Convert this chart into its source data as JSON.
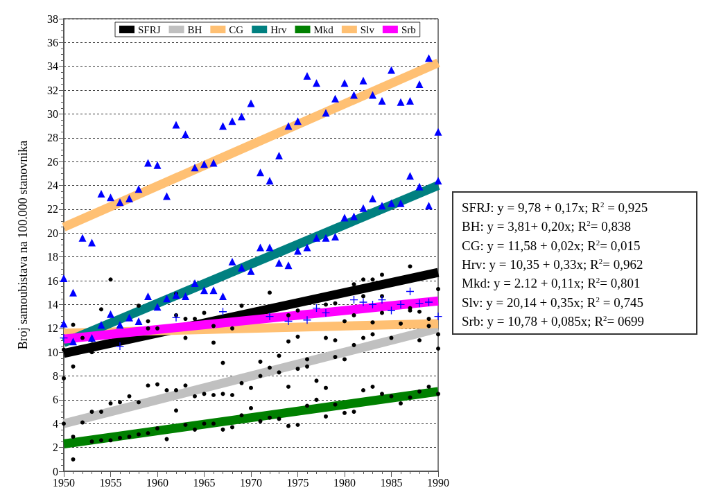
{
  "chart_data": {
    "type": "scatter",
    "ylabel": "Broj samoubistava na 100.000 stanovnika",
    "xlim": [
      1950,
      1990
    ],
    "xticks": [
      1950,
      1955,
      1960,
      1965,
      1970,
      1975,
      1980,
      1985,
      1990
    ],
    "ylim": [
      0,
      38
    ],
    "yticks": [
      0,
      2,
      4,
      6,
      8,
      10,
      12,
      14,
      16,
      18,
      20,
      22,
      24,
      26,
      28,
      30,
      32,
      34,
      36,
      38
    ],
    "grid": "y",
    "legend": "top",
    "series": [
      {
        "name": "SFRJ",
        "type": "line",
        "color": "#000000",
        "marker": "none",
        "x": [
          1950,
          1990
        ],
        "values": [
          9.9,
          16.7
        ]
      },
      {
        "name": "BH",
        "type": "line",
        "color": "#c0c0c0",
        "marker": "none",
        "x": [
          1950,
          1990
        ],
        "values": [
          4.0,
          12.0
        ]
      },
      {
        "name": "CG",
        "type": "line",
        "color": "#ffc073",
        "marker": "none",
        "x": [
          1950,
          1990
        ],
        "values": [
          11.6,
          12.4
        ]
      },
      {
        "name": "Hrv",
        "type": "line",
        "color": "#008080",
        "marker": "none",
        "x": [
          1950,
          1990
        ],
        "values": [
          10.8,
          24.0
        ]
      },
      {
        "name": "Mkd",
        "type": "line",
        "color": "#008000",
        "marker": "none",
        "x": [
          1950,
          1990
        ],
        "values": [
          2.3,
          6.7
        ]
      },
      {
        "name": "Slv",
        "type": "line",
        "color": "#ffc073",
        "marker": "none",
        "x": [
          1950,
          1990
        ],
        "values": [
          20.5,
          34.3
        ]
      },
      {
        "name": "Srb",
        "type": "line",
        "color": "#ff00ff",
        "marker": "none",
        "x": [
          1950,
          1990
        ],
        "values": [
          11.1,
          14.3
        ]
      },
      {
        "color": "#000000",
        "marker": "circle",
        "x": [
          1950,
          1950,
          1950,
          1951,
          1951,
          1951,
          1951,
          1952,
          1952,
          1953,
          1953,
          1953,
          1953,
          1954,
          1954,
          1954,
          1955,
          1955,
          1955,
          1956,
          1956,
          1957,
          1957,
          1958,
          1958,
          1958,
          1959,
          1959,
          1959,
          1959,
          1960,
          1960,
          1960,
          1961,
          1961,
          1962,
          1962,
          1962,
          1962,
          1963,
          1963,
          1963,
          1963,
          1964,
          1964,
          1964,
          1965,
          1965,
          1965,
          1966,
          1966,
          1966,
          1966,
          1967,
          1967,
          1967,
          1968,
          1968,
          1968,
          1969,
          1969,
          1969,
          1970,
          1970,
          1971,
          1971,
          1971,
          1972,
          1972,
          1972,
          1973,
          1973,
          1973,
          1974,
          1974,
          1974,
          1974,
          1975,
          1975,
          1975,
          1975,
          1976,
          1976,
          1976,
          1977,
          1977,
          1978,
          1978,
          1978,
          1978,
          1979,
          1979,
          1979,
          1979,
          1980,
          1980,
          1980,
          1981,
          1981,
          1981,
          1981,
          1982,
          1982,
          1982,
          1982,
          1983,
          1983,
          1983,
          1983,
          1984,
          1984,
          1984,
          1984,
          1985,
          1985,
          1986,
          1986,
          1987,
          1987,
          1987,
          1987,
          1988,
          1988,
          1988,
          1989,
          1989,
          1989,
          1990,
          1990,
          1990,
          1990
        ],
        "values": [
          10.2,
          7.8,
          4.0,
          12.3,
          8.8,
          2.9,
          1.0,
          11.2,
          4.1,
          11.0,
          10.0,
          5.0,
          2.5,
          13.6,
          5.0,
          2.6,
          16.1,
          5.7,
          2.6,
          5.8,
          2.8,
          6.3,
          2.9,
          13.9,
          5.8,
          3.1,
          12.6,
          12.0,
          7.2,
          3.2,
          12.0,
          7.3,
          3.6,
          6.8,
          2.7,
          14.9,
          13.1,
          6.8,
          5.1,
          12.8,
          11.2,
          7.2,
          3.9,
          12.8,
          6.3,
          3.5,
          13.3,
          6.5,
          4.0,
          12.2,
          10.8,
          6.4,
          4.0,
          9.1,
          6.5,
          3.5,
          12.0,
          6.4,
          3.7,
          13.9,
          7.4,
          4.7,
          7.0,
          5.3,
          9.2,
          8.0,
          4.2,
          15.0,
          8.7,
          4.5,
          9.7,
          8.3,
          4.4,
          13.1,
          10.9,
          7.1,
          3.8,
          13.5,
          11.3,
          8.6,
          3.9,
          9.4,
          8.8,
          5.5,
          7.6,
          6.0,
          14.0,
          11.2,
          7.0,
          4.6,
          14.1,
          11.0,
          9.6,
          5.6,
          12.6,
          9.4,
          4.9,
          15.7,
          13.1,
          10.6,
          5.0,
          16.1,
          14.7,
          11.2,
          6.8,
          16.1,
          12.5,
          11.5,
          7.1,
          16.5,
          14.7,
          13.3,
          6.5,
          11.2,
          6.3,
          12.4,
          5.7,
          17.2,
          13.7,
          13.5,
          6.2,
          13.4,
          11.0,
          6.7,
          12.8,
          12.2,
          7.1,
          15.3,
          11.5,
          10.3,
          6.5
        ]
      },
      {
        "color": "#0000ff",
        "marker": "triangle",
        "x": [
          1950,
          1951,
          1952,
          1953,
          1954,
          1955,
          1956,
          1957,
          1958,
          1959,
          1960,
          1961,
          1962,
          1963,
          1964,
          1965,
          1966,
          1967,
          1968,
          1969,
          1970,
          1971,
          1972,
          1973,
          1974,
          1975,
          1976,
          1977,
          1978,
          1979,
          1980,
          1981,
          1982,
          1983,
          1984,
          1985,
          1986,
          1987,
          1988,
          1989,
          1990
        ],
        "values": [
          16.2,
          15.0,
          19.6,
          19.2,
          23.3,
          23.0,
          22.6,
          22.9,
          23.7,
          25.9,
          25.7,
          23.1,
          29.1,
          28.3,
          25.5,
          25.8,
          25.9,
          29.0,
          29.4,
          29.8,
          30.9,
          25.1,
          24.4,
          26.5,
          29.0,
          29.4,
          33.2,
          32.6,
          30.1,
          31.3,
          32.6,
          31.6,
          32.8,
          31.6,
          31.1,
          33.7,
          31.0,
          31.1,
          32.5,
          34.7,
          28.5
        ]
      },
      {
        "color": "#0000ff",
        "marker": "triangle",
        "x": [
          1950,
          1951,
          1953,
          1954,
          1955,
          1956,
          1957,
          1958,
          1959,
          1960,
          1961,
          1962,
          1963,
          1964,
          1965,
          1966,
          1967,
          1968,
          1969,
          1970,
          1971,
          1972,
          1973,
          1974,
          1975,
          1976,
          1977,
          1978,
          1979,
          1980,
          1981,
          1982,
          1983,
          1984,
          1985,
          1986,
          1987,
          1988,
          1989,
          1990
        ],
        "values": [
          12.4,
          10.9,
          11.2,
          12.3,
          13.2,
          12.3,
          12.9,
          12.6,
          14.7,
          13.8,
          14.5,
          14.8,
          14.7,
          15.8,
          15.2,
          15.2,
          14.7,
          17.6,
          17.1,
          16.8,
          18.8,
          18.8,
          17.5,
          17.3,
          18.5,
          18.8,
          19.6,
          19.6,
          19.7,
          21.3,
          21.4,
          22.1,
          22.9,
          22.3,
          22.5,
          22.5,
          24.8,
          23.9,
          22.3,
          24.4
        ]
      },
      {
        "color": "#0000ff",
        "marker": "cross",
        "x": [
          1950,
          1956,
          1962,
          1967,
          1972,
          1974,
          1976,
          1977,
          1978,
          1981,
          1982,
          1983,
          1984,
          1985,
          1986,
          1987,
          1988,
          1989,
          1990
        ],
        "values": [
          11.2,
          10.5,
          12.9,
          13.4,
          13.0,
          12.6,
          12.7,
          13.7,
          13.3,
          14.4,
          14.2,
          14.0,
          14.4,
          13.5,
          14.0,
          15.1,
          14.1,
          14.2,
          13.0
        ]
      }
    ],
    "annotations": [
      "SFRJ: y = 9,78 + 0,17x; R$^{2}$ = 0,925",
      "BH: y = 3,81+ 0,20x; R$^{2}$= 0,838",
      "CG: y = 11,58 + 0,02x; R$^{2}$= 0,015",
      "Hrv: y = 10,35 + 0,33x; R$^{2}$= 0,962",
      "Mkd: y = 2.12 + 0,11x; R$^{2}$= 0,801",
      "Slv: y = 20,14 + 0,35x; R$^{2}$ = 0,745",
      "Srb: y = 10,78 + 0,085x; R$^{2}$= 0699"
    ]
  }
}
